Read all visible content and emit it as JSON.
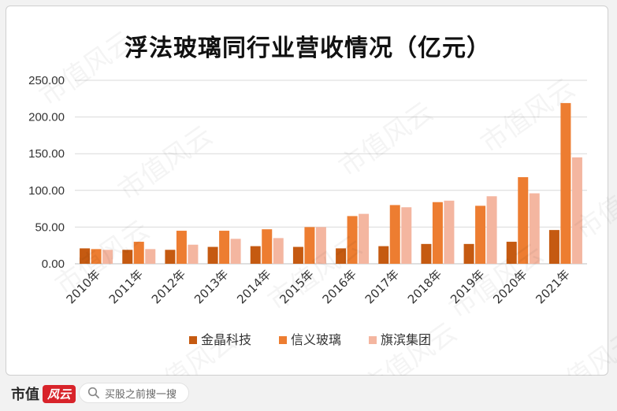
{
  "chart_data": {
    "type": "bar",
    "title": "浮法玻璃同行业营收情况（亿元）",
    "categories": [
      "2010年",
      "2011年",
      "2012年",
      "2013年",
      "2014年",
      "2015年",
      "2016年",
      "2017年",
      "2018年",
      "2019年",
      "2020年",
      "2021年"
    ],
    "series": [
      {
        "name": "金晶科技",
        "color": "#c55a11",
        "values": [
          21,
          19,
          19,
          23,
          24,
          23,
          21,
          24,
          27,
          27,
          30,
          46
        ]
      },
      {
        "name": "信义玻璃",
        "color": "#ed7d31",
        "values": [
          20,
          30,
          45,
          45,
          47,
          50,
          65,
          80,
          84,
          79,
          118,
          219
        ]
      },
      {
        "name": "旗滨集团",
        "color": "#f4b6a0",
        "values": [
          19,
          20,
          26,
          34,
          35,
          50,
          68,
          77,
          86,
          92,
          96,
          145
        ]
      }
    ],
    "yticks": [
      "0.00",
      "50.00",
      "100.00",
      "150.00",
      "200.00",
      "250.00"
    ],
    "ylim": [
      0,
      250
    ],
    "grid": true,
    "legend": "bottom"
  },
  "footer": {
    "brand_name": "市值",
    "brand_mark": "风云",
    "search_placeholder": "买股之前搜一搜",
    "search_icon": "search-icon"
  },
  "watermark": "市值风云"
}
